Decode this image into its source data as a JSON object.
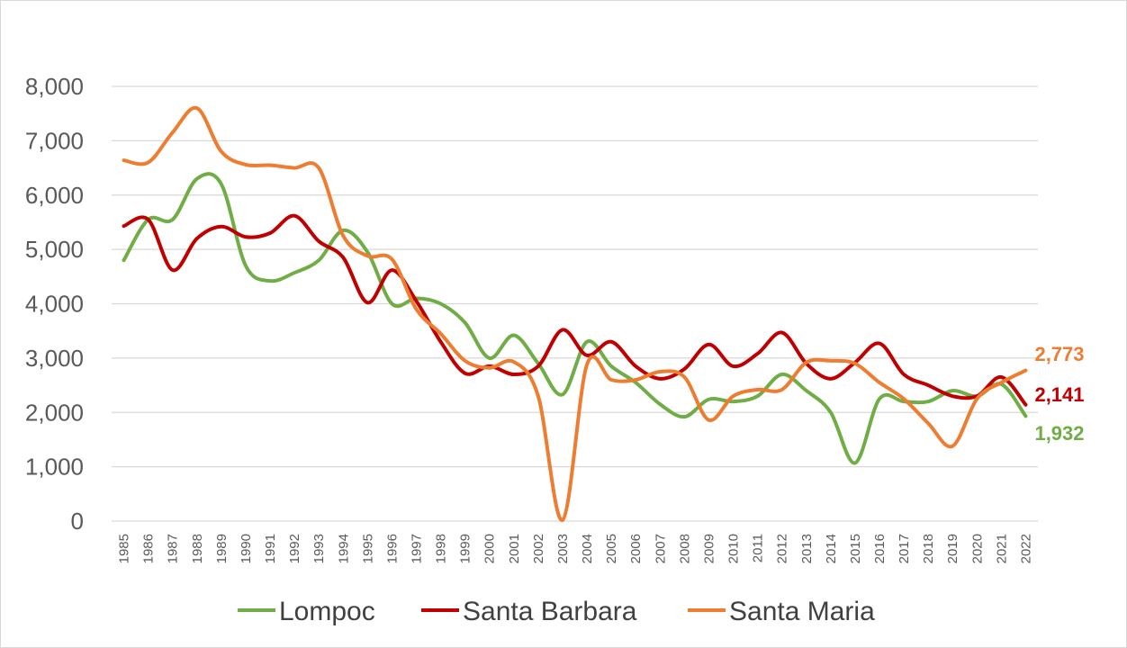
{
  "chart_data": {
    "type": "line",
    "title": "",
    "xlabel": "",
    "ylabel": "",
    "ylim": [
      0,
      8000
    ],
    "yticks": [
      0,
      1000,
      2000,
      3000,
      4000,
      5000,
      6000,
      7000,
      8000
    ],
    "ytick_labels": [
      "0",
      "1,000",
      "2,000",
      "3,000",
      "4,000",
      "5,000",
      "6,000",
      "7,000",
      "8,000"
    ],
    "grid": true,
    "legend_position": "bottom",
    "x": [
      "1985",
      "1986",
      "1987",
      "1988",
      "1989",
      "1990",
      "1991",
      "1992",
      "1993",
      "1994",
      "1995",
      "1996",
      "1997",
      "1998",
      "1999",
      "2000",
      "2001",
      "2002",
      "2003",
      "2004",
      "2005",
      "2006",
      "2007",
      "2008",
      "2009",
      "2010",
      "2011",
      "2012",
      "2013",
      "2014",
      "2015",
      "2016",
      "2017",
      "2018",
      "2019",
      "2020",
      "2021",
      "2022"
    ],
    "series": [
      {
        "name": "Lompoc",
        "color": "#70ad47",
        "values": [
          4800,
          5550,
          5550,
          6300,
          6200,
          4700,
          4420,
          4570,
          4800,
          5350,
          4950,
          4000,
          4100,
          4000,
          3650,
          3000,
          3420,
          2900,
          2330,
          3300,
          2850,
          2550,
          2150,
          1920,
          2240,
          2200,
          2300,
          2700,
          2400,
          2000,
          1070,
          2250,
          2200,
          2200,
          2400,
          2300,
          2520,
          1932
        ],
        "end_label": "1,932"
      },
      {
        "name": "Santa Barbara",
        "color": "#c00000",
        "values": [
          5430,
          5550,
          4620,
          5200,
          5420,
          5230,
          5300,
          5620,
          5150,
          4850,
          4020,
          4620,
          4050,
          3300,
          2720,
          2850,
          2700,
          2850,
          3520,
          3050,
          3300,
          2850,
          2620,
          2800,
          3250,
          2850,
          3080,
          3470,
          2900,
          2620,
          2920,
          3270,
          2700,
          2500,
          2300,
          2300,
          2650,
          2141
        ],
        "end_label": "2,141"
      },
      {
        "name": "Santa Maria",
        "color": "#ed7d31",
        "values": [
          6640,
          6600,
          7150,
          7600,
          6800,
          6560,
          6550,
          6500,
          6500,
          5250,
          4880,
          4820,
          3900,
          3450,
          2950,
          2820,
          2930,
          2300,
          20,
          2880,
          2600,
          2600,
          2750,
          2650,
          1860,
          2300,
          2420,
          2420,
          2920,
          2950,
          2900,
          2550,
          2250,
          1800,
          1380,
          2250,
          2550,
          2773
        ],
        "end_label": "2,773"
      }
    ]
  }
}
